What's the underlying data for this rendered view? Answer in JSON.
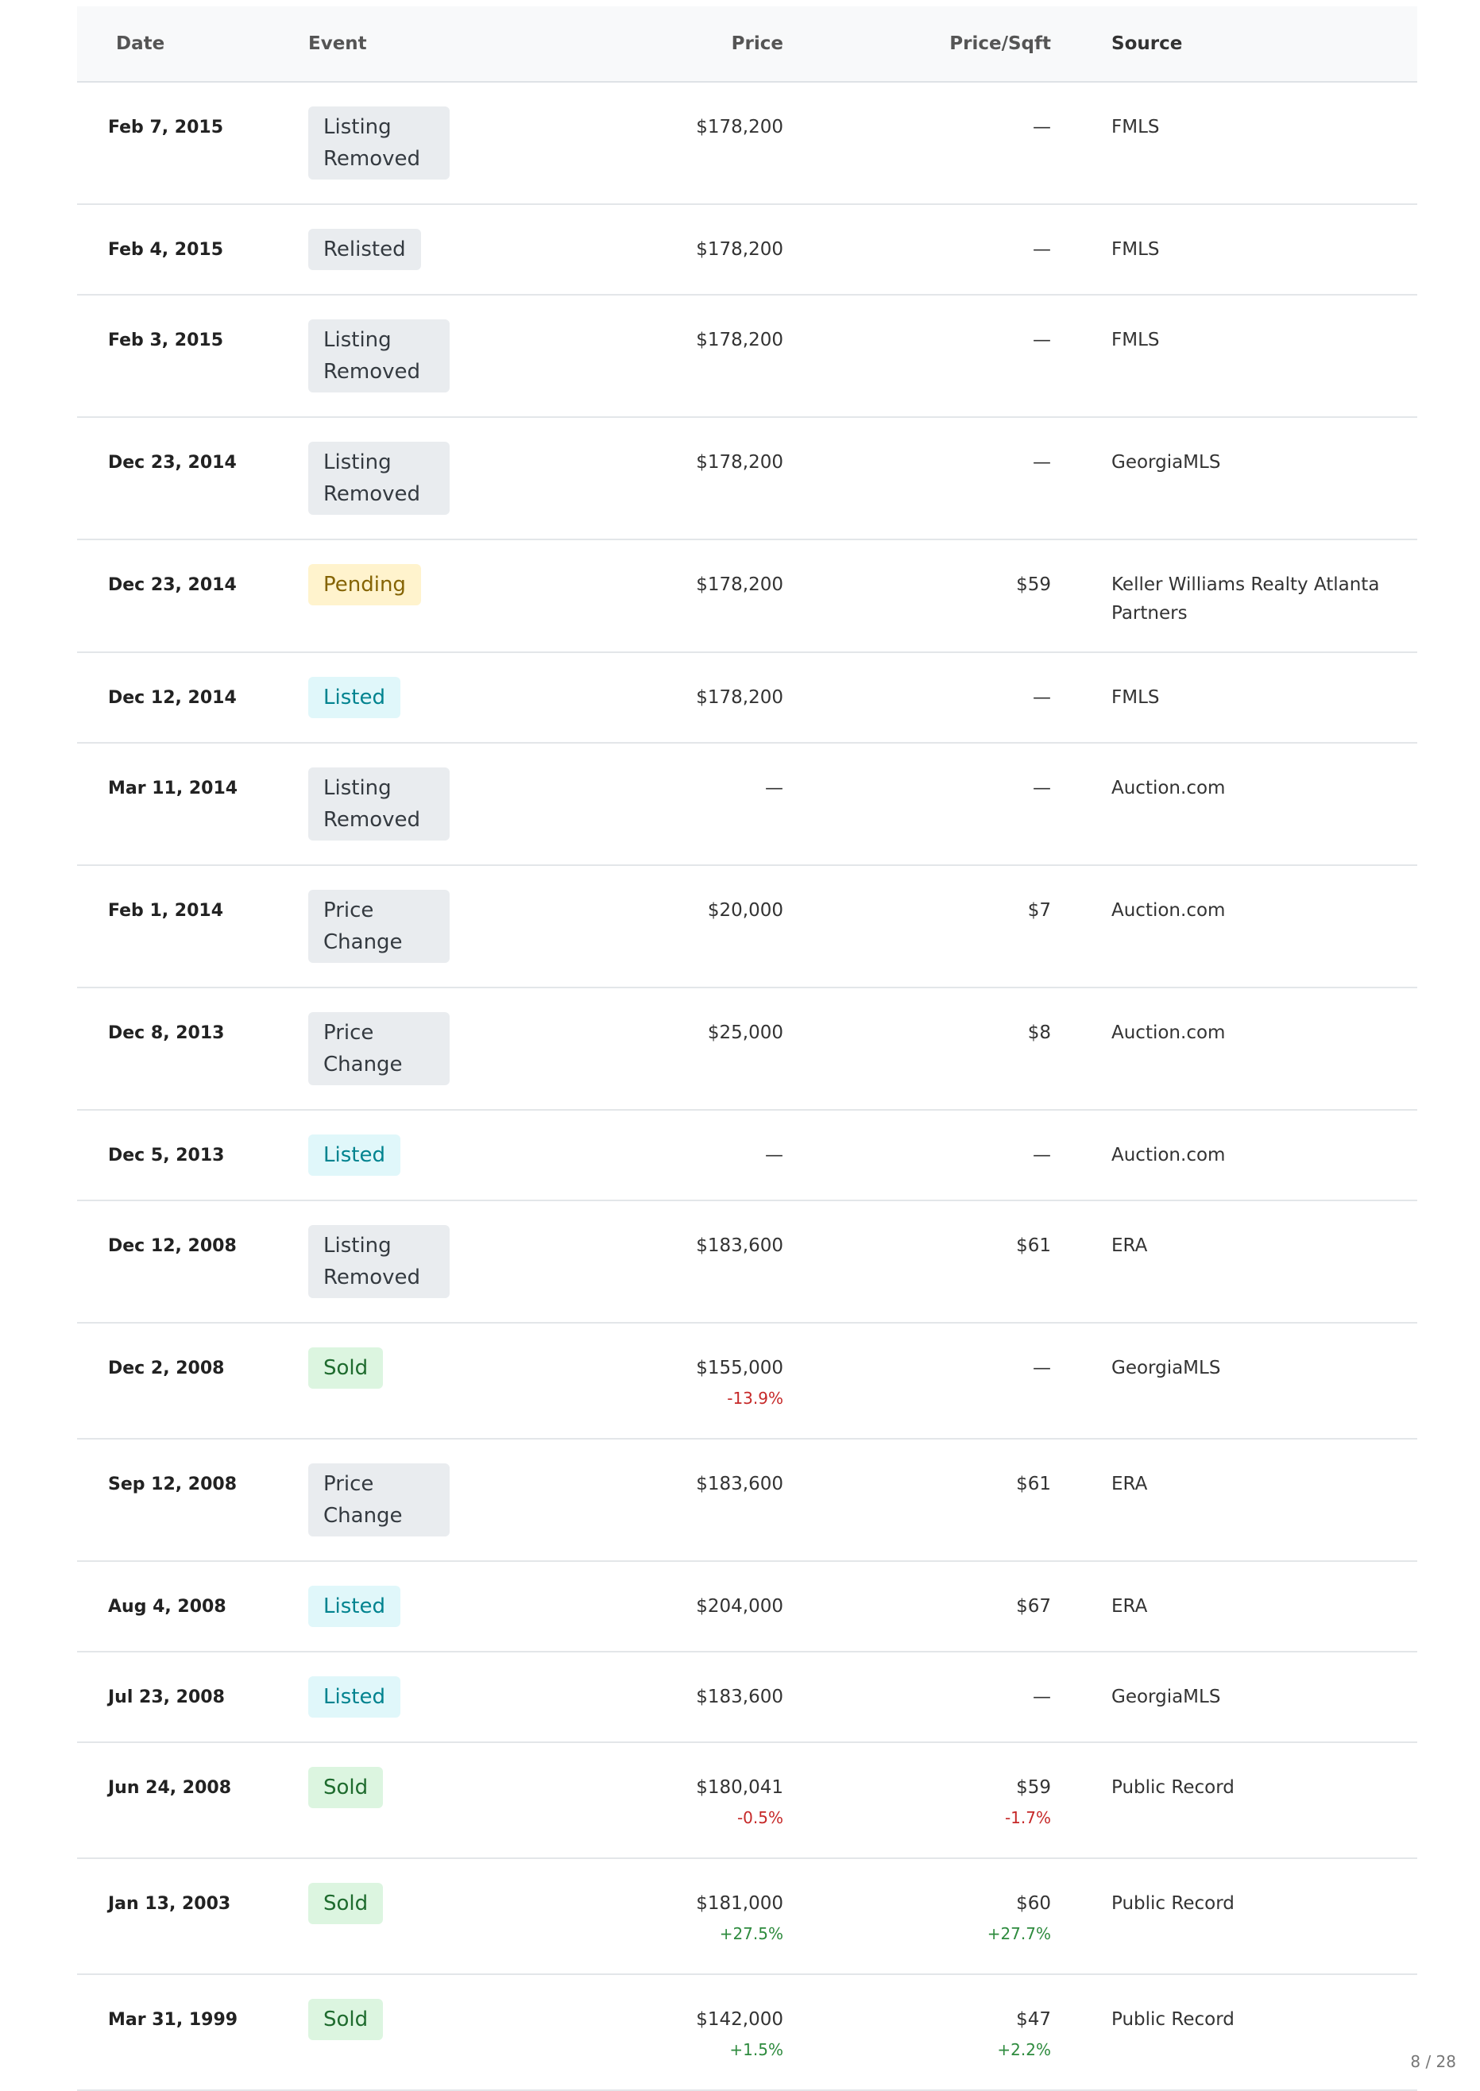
{
  "table": {
    "headers": [
      "Date",
      "Event",
      "Price",
      "Price/Sqft",
      "Source"
    ],
    "rows": [
      {
        "date": "Feb 7, 2015",
        "event": "Listing Removed",
        "badge": {
          "bg": "#e9ecef",
          "fg": "#343a40"
        },
        "price": "$178,200",
        "price_sqft": "—",
        "source": "FMLS"
      },
      {
        "date": "Feb 4, 2015",
        "event": "Relisted",
        "badge": {
          "bg": "#e9ecef",
          "fg": "#343a40"
        },
        "price": "$178,200",
        "price_sqft": "—",
        "source": "FMLS"
      },
      {
        "date": "Feb 3, 2015",
        "event": "Listing Removed",
        "badge": {
          "bg": "#e9ecef",
          "fg": "#343a40"
        },
        "price": "$178,200",
        "price_sqft": "—",
        "source": "FMLS"
      },
      {
        "date": "Dec 23, 2014",
        "event": "Listing Removed",
        "badge": {
          "bg": "#e9ecef",
          "fg": "#343a40"
        },
        "price": "$178,200",
        "price_sqft": "—",
        "source": "GeorgiaMLS"
      },
      {
        "date": "Dec 23, 2014",
        "event": "Pending",
        "badge": {
          "bg": "#fff3cd",
          "fg": "#856404"
        },
        "price": "$178,200",
        "price_sqft": "$59",
        "source": "Keller Williams Realty Atlanta Partners"
      },
      {
        "date": "Dec 12, 2014",
        "event": "Listed",
        "badge": {
          "bg": "#e0f7fa",
          "fg": "#00838f"
        },
        "price": "$178,200",
        "price_sqft": "—",
        "source": "FMLS"
      },
      {
        "date": "Mar 11, 2014",
        "event": "Listing Removed",
        "badge": {
          "bg": "#e9ecef",
          "fg": "#343a40"
        },
        "price": "—",
        "price_sqft": "—",
        "source": "Auction.com"
      },
      {
        "date": "Feb 1, 2014",
        "event": "Price Change",
        "badge": {
          "bg": "#e9ecef",
          "fg": "#343a40"
        },
        "price": "$20,000",
        "price_sqft": "$7",
        "source": "Auction.com"
      },
      {
        "date": "Dec 8, 2013",
        "event": "Price Change",
        "badge": {
          "bg": "#e9ecef",
          "fg": "#343a40"
        },
        "price": "$25,000",
        "price_sqft": "$8",
        "source": "Auction.com"
      },
      {
        "date": "Dec 5, 2013",
        "event": "Listed",
        "badge": {
          "bg": "#e0f7fa",
          "fg": "#00838f"
        },
        "price": "—",
        "price_sqft": "—",
        "source": "Auction.com"
      },
      {
        "date": "Dec 12, 2008",
        "event": "Listing Removed",
        "badge": {
          "bg": "#e9ecef",
          "fg": "#343a40"
        },
        "price": "$183,600",
        "price_sqft": "$61",
        "source": "ERA"
      },
      {
        "date": "Dec 2, 2008",
        "event": "Sold",
        "badge": {
          "bg": "#dcf5e0",
          "fg": "#1e6b2e"
        },
        "price": "$155,000",
        "price_change": {
          "text": "-13.9%",
          "color": "#c62828"
        },
        "price_sqft": "—",
        "source": "GeorgiaMLS"
      },
      {
        "date": "Sep 12, 2008",
        "event": "Price Change",
        "badge": {
          "bg": "#e9ecef",
          "fg": "#343a40"
        },
        "price": "$183,600",
        "price_sqft": "$61",
        "source": "ERA"
      },
      {
        "date": "Aug 4, 2008",
        "event": "Listed",
        "badge": {
          "bg": "#e0f7fa",
          "fg": "#00838f"
        },
        "price": "$204,000",
        "price_sqft": "$67",
        "source": "ERA"
      },
      {
        "date": "Jul 23, 2008",
        "event": "Listed",
        "badge": {
          "bg": "#e0f7fa",
          "fg": "#00838f"
        },
        "price": "$183,600",
        "price_sqft": "—",
        "source": "GeorgiaMLS"
      },
      {
        "date": "Jun 24, 2008",
        "event": "Sold",
        "badge": {
          "bg": "#dcf5e0",
          "fg": "#1e6b2e"
        },
        "price": "$180,041",
        "price_change": {
          "text": "-0.5%",
          "color": "#c62828"
        },
        "price_sqft": "$59",
        "sqft_change": {
          "text": "-1.7%",
          "color": "#c62828"
        },
        "source": "Public Record"
      },
      {
        "date": "Jan 13, 2003",
        "event": "Sold",
        "badge": {
          "bg": "#dcf5e0",
          "fg": "#1e6b2e"
        },
        "price": "$181,000",
        "price_change": {
          "text": "+27.5%",
          "color": "#2e8b3e"
        },
        "price_sqft": "$60",
        "sqft_change": {
          "text": "+27.7%",
          "color": "#2e8b3e"
        },
        "source": "Public Record"
      },
      {
        "date": "Mar 31, 1999",
        "event": "Sold",
        "badge": {
          "bg": "#dcf5e0",
          "fg": "#1e6b2e"
        },
        "price": "$142,000",
        "price_change": {
          "text": "+1.5%",
          "color": "#2e8b3e"
        },
        "price_sqft": "$47",
        "sqft_change": {
          "text": "+2.2%",
          "color": "#2e8b3e"
        },
        "source": "Public Record"
      }
    ]
  },
  "footer": {
    "page": "8 / 28"
  }
}
